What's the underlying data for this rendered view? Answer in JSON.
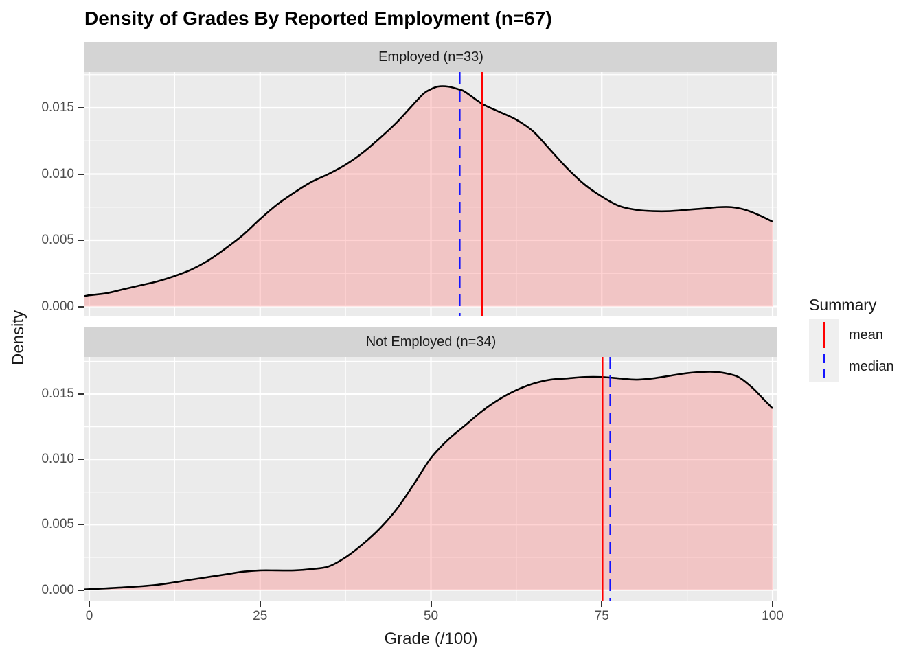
{
  "title": "Density of Grades By Reported Employment (n=67)",
  "axes": {
    "x_title": "Grade (/100)",
    "y_title": "Density",
    "x_tick_labels": [
      "0",
      "25",
      "50",
      "75",
      "100"
    ],
    "x_tick_values": [
      0,
      25,
      50,
      75,
      100
    ],
    "y_tick_labels": [
      "0.000",
      "0.005",
      "0.010",
      "0.015"
    ],
    "y_tick_values": [
      0,
      0.005,
      0.01,
      0.015
    ]
  },
  "legend": {
    "title": "Summary",
    "items": [
      {
        "label": "mean",
        "color": "#FF0000",
        "style": "solid"
      },
      {
        "label": "median",
        "color": "#1414FF",
        "style": "dashed"
      }
    ]
  },
  "colors": {
    "page_bg": "#FFFFFF",
    "panel_bg": "#EBEBEB",
    "strip_bg": "#D4D4D4",
    "grid": "#FFFFFF",
    "area_fill": "rgba(255,110,110,0.30)",
    "curve": "#000000",
    "mean_line": "#FF0000",
    "median_line": "#1414FF",
    "tick_text": "#4D4D4D",
    "text": "#1A1A1A"
  },
  "chart_data": {
    "type": "area",
    "subtype": "density",
    "title": "Density of Grades By Reported Employment (n=67)",
    "xlabel": "Grade (/100)",
    "ylabel": "Density",
    "xlim": [
      0,
      100
    ],
    "ylim": [
      0,
      0.0175
    ],
    "grid": true,
    "legend_position": "right",
    "legend_title": "Summary",
    "facets": [
      {
        "label": "Employed (n=33)",
        "n": 33,
        "mean": 57.5,
        "median": 54.2,
        "curve_x": [
          -0.7,
          0,
          2.5,
          5,
          7.5,
          10,
          12.5,
          15,
          17.5,
          20,
          22.5,
          25,
          27.5,
          30,
          32.5,
          35,
          37.5,
          40,
          42.5,
          45,
          47.5,
          49,
          50,
          51,
          52.5,
          54,
          55,
          57.5,
          60,
          62.5,
          65,
          67.5,
          70,
          72.5,
          75,
          77.5,
          80,
          82.5,
          85,
          87.5,
          90,
          92,
          94,
          96,
          98,
          100
        ],
        "curve_density": [
          0.00078,
          0.00085,
          0.001,
          0.0013,
          0.0016,
          0.0019,
          0.0023,
          0.0028,
          0.0035,
          0.0044,
          0.0054,
          0.0066,
          0.0077,
          0.0086,
          0.0094,
          0.01,
          0.0107,
          0.0116,
          0.0127,
          0.0139,
          0.0153,
          0.0161,
          0.0164,
          0.0166,
          0.0166,
          0.0164,
          0.0162,
          0.0153,
          0.0147,
          0.0141,
          0.0132,
          0.0118,
          0.0104,
          0.0092,
          0.0083,
          0.0076,
          0.0073,
          0.0072,
          0.0072,
          0.0073,
          0.0074,
          0.0075,
          0.0075,
          0.0073,
          0.0069,
          0.0064
        ]
      },
      {
        "label": "Not Employed (n=34)",
        "n": 34,
        "mean": 75.1,
        "median": 76.25,
        "curve_x": [
          -0.7,
          0,
          5,
          10,
          15,
          17.5,
          20,
          22.5,
          25,
          27.5,
          30,
          32.5,
          35,
          37.5,
          40,
          42.5,
          45,
          47.5,
          50,
          52.5,
          55,
          57.5,
          60,
          62.5,
          65,
          67.5,
          70,
          72.5,
          75,
          77.5,
          80,
          82.5,
          85,
          87.5,
          90,
          91.5,
          93,
          95,
          97,
          98.5,
          100
        ],
        "curve_density": [
          4e-05,
          6e-05,
          0.0002,
          0.0004,
          0.0008,
          0.001,
          0.0012,
          0.0014,
          0.0015,
          0.0015,
          0.0015,
          0.0016,
          0.0018,
          0.0025,
          0.0035,
          0.0047,
          0.0062,
          0.0081,
          0.0101,
          0.0115,
          0.0126,
          0.0137,
          0.0146,
          0.0153,
          0.0158,
          0.0161,
          0.0162,
          0.0163,
          0.0163,
          0.0162,
          0.0161,
          0.0162,
          0.0164,
          0.0166,
          0.0167,
          0.0167,
          0.0166,
          0.0163,
          0.0155,
          0.0147,
          0.0139
        ]
      }
    ]
  }
}
